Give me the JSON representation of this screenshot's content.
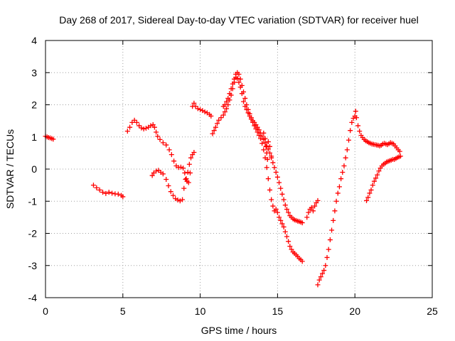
{
  "chart_data": {
    "type": "scatter",
    "title": "Day 268 of 2017, Sidereal Day-to-day VTEC variation (SDTVAR) for receiver huel",
    "xlabel": "GPS time / hours",
    "ylabel": "SDTVAR / TECUs",
    "xlim": [
      0,
      25
    ],
    "ylim": [
      -4,
      4
    ],
    "x_ticks": [
      0,
      5,
      10,
      15,
      20,
      25
    ],
    "y_ticks": [
      -4,
      -3,
      -2,
      -1,
      0,
      1,
      2,
      3,
      4
    ],
    "grid": true,
    "marker": "+",
    "series_color": "#ff0000",
    "series": [
      {
        "points": [
          [
            0.0,
            1.02
          ],
          [
            0.1,
            1.0
          ],
          [
            0.2,
            0.98
          ],
          [
            0.3,
            0.97
          ],
          [
            0.4,
            0.95
          ],
          [
            0.5,
            0.93
          ]
        ]
      },
      {
        "points": [
          [
            3.1,
            -0.5
          ],
          [
            3.3,
            -0.58
          ],
          [
            3.5,
            -0.65
          ],
          [
            3.7,
            -0.72
          ],
          [
            3.9,
            -0.76
          ],
          [
            4.1,
            -0.72
          ],
          [
            4.3,
            -0.75
          ],
          [
            4.5,
            -0.77
          ],
          [
            4.7,
            -0.78
          ],
          [
            4.9,
            -0.82
          ],
          [
            5.0,
            -0.86
          ]
        ]
      },
      {
        "points": [
          [
            5.3,
            1.18
          ],
          [
            5.45,
            1.3
          ],
          [
            5.6,
            1.45
          ],
          [
            5.75,
            1.52
          ],
          [
            5.9,
            1.45
          ],
          [
            6.05,
            1.35
          ],
          [
            6.2,
            1.28
          ],
          [
            6.35,
            1.25
          ],
          [
            6.5,
            1.27
          ],
          [
            6.65,
            1.3
          ],
          [
            6.8,
            1.35
          ],
          [
            6.95,
            1.38
          ],
          [
            7.05,
            1.3
          ],
          [
            7.15,
            1.15
          ],
          [
            7.25,
            1.02
          ],
          [
            7.4,
            0.92
          ],
          [
            7.6,
            0.82
          ],
          [
            7.8,
            0.75
          ],
          [
            8.0,
            0.6
          ],
          [
            8.15,
            0.45
          ],
          [
            8.3,
            0.25
          ],
          [
            8.45,
            0.1
          ],
          [
            8.6,
            0.05
          ],
          [
            8.75,
            0.06
          ],
          [
            8.9,
            0.03
          ],
          [
            9.0,
            -0.12
          ],
          [
            9.1,
            -0.3
          ],
          [
            9.2,
            -0.1
          ],
          [
            9.3,
            0.15
          ],
          [
            9.4,
            0.35
          ],
          [
            9.5,
            0.45
          ],
          [
            9.6,
            0.52
          ]
        ]
      },
      {
        "points": [
          [
            6.9,
            -0.2
          ],
          [
            7.0,
            -0.12
          ],
          [
            7.15,
            -0.06
          ],
          [
            7.3,
            -0.04
          ],
          [
            7.45,
            -0.1
          ],
          [
            7.6,
            -0.15
          ],
          [
            7.8,
            -0.32
          ],
          [
            7.95,
            -0.52
          ],
          [
            8.1,
            -0.7
          ],
          [
            8.25,
            -0.82
          ],
          [
            8.4,
            -0.92
          ],
          [
            8.55,
            -0.96
          ],
          [
            8.7,
            -0.99
          ],
          [
            8.85,
            -0.95
          ],
          [
            8.95,
            -0.6
          ],
          [
            9.05,
            -0.32
          ],
          [
            9.15,
            -0.38
          ],
          [
            9.25,
            -0.42
          ],
          [
            9.35,
            -0.12
          ]
        ]
      },
      {
        "points": [
          [
            9.5,
            1.95
          ],
          [
            9.6,
            2.05
          ],
          [
            9.7,
            1.95
          ],
          [
            9.85,
            1.88
          ],
          [
            10.0,
            1.85
          ],
          [
            10.15,
            1.82
          ],
          [
            10.3,
            1.78
          ],
          [
            10.45,
            1.75
          ],
          [
            10.6,
            1.7
          ],
          [
            10.7,
            1.65
          ]
        ]
      },
      {
        "points": [
          [
            10.8,
            1.1
          ],
          [
            10.9,
            1.2
          ],
          [
            11.0,
            1.3
          ],
          [
            11.1,
            1.42
          ],
          [
            11.2,
            1.52
          ],
          [
            11.35,
            1.6
          ],
          [
            11.5,
            1.68
          ],
          [
            11.6,
            1.78
          ],
          [
            11.7,
            1.88
          ],
          [
            11.8,
            2.0
          ],
          [
            11.9,
            2.15
          ],
          [
            12.0,
            2.3
          ],
          [
            12.1,
            2.5
          ],
          [
            12.2,
            2.7
          ],
          [
            12.3,
            2.85
          ],
          [
            12.4,
            2.82
          ],
          [
            12.5,
            2.7
          ],
          [
            12.6,
            2.55
          ],
          [
            12.7,
            2.35
          ],
          [
            12.8,
            2.1
          ],
          [
            12.9,
            1.95
          ],
          [
            13.0,
            1.85
          ],
          [
            13.1,
            1.75
          ],
          [
            13.2,
            1.65
          ],
          [
            13.3,
            1.55
          ],
          [
            13.4,
            1.45
          ],
          [
            13.5,
            1.35
          ],
          [
            13.6,
            1.25
          ],
          [
            13.7,
            1.15
          ],
          [
            13.8,
            1.05
          ],
          [
            13.9,
            0.95
          ],
          [
            14.0,
            0.8
          ],
          [
            14.1,
            0.6
          ],
          [
            14.2,
            0.35
          ],
          [
            14.3,
            0.05
          ],
          [
            14.4,
            -0.3
          ],
          [
            14.5,
            -0.65
          ],
          [
            14.6,
            -0.95
          ],
          [
            14.7,
            -1.15
          ],
          [
            14.8,
            -1.3
          ],
          [
            14.9,
            -1.25
          ],
          [
            15.0,
            -1.35
          ],
          [
            15.1,
            -1.5
          ],
          [
            15.2,
            -1.6
          ],
          [
            15.3,
            -1.7
          ],
          [
            15.4,
            -1.8
          ],
          [
            15.5,
            -1.95
          ],
          [
            15.6,
            -2.1
          ],
          [
            15.7,
            -2.25
          ],
          [
            15.8,
            -2.4
          ],
          [
            15.9,
            -2.5
          ],
          [
            16.0,
            -2.58
          ],
          [
            16.1,
            -2.62
          ],
          [
            16.2,
            -2.67
          ],
          [
            16.3,
            -2.72
          ],
          [
            16.4,
            -2.78
          ],
          [
            16.5,
            -2.82
          ],
          [
            16.6,
            -2.87
          ]
        ]
      },
      {
        "points": [
          [
            11.5,
            1.95
          ],
          [
            11.6,
            2.0
          ],
          [
            11.7,
            2.1
          ],
          [
            11.8,
            2.2
          ],
          [
            11.9,
            2.35
          ],
          [
            12.0,
            2.5
          ],
          [
            12.1,
            2.65
          ],
          [
            12.2,
            2.8
          ],
          [
            12.3,
            2.95
          ],
          [
            12.4,
            3.0
          ],
          [
            12.5,
            2.95
          ],
          [
            12.6,
            2.8
          ],
          [
            12.7,
            2.6
          ],
          [
            12.8,
            2.4
          ],
          [
            12.9,
            2.2
          ],
          [
            13.0,
            2.0
          ],
          [
            13.1,
            1.85
          ],
          [
            13.2,
            1.72
          ],
          [
            13.3,
            1.6
          ],
          [
            13.4,
            1.5
          ],
          [
            13.5,
            1.45
          ],
          [
            13.6,
            1.38
          ],
          [
            13.7,
            1.3
          ],
          [
            13.8,
            1.22
          ],
          [
            13.9,
            1.12
          ],
          [
            14.0,
            1.02
          ],
          [
            14.1,
            0.92
          ],
          [
            14.2,
            0.82
          ],
          [
            14.3,
            0.72
          ],
          [
            14.4,
            0.62
          ],
          [
            14.5,
            0.5
          ],
          [
            14.6,
            0.35
          ],
          [
            14.7,
            0.2
          ],
          [
            14.8,
            0.05
          ],
          [
            14.9,
            -0.1
          ],
          [
            15.0,
            -0.25
          ],
          [
            15.1,
            -0.42
          ],
          [
            15.2,
            -0.6
          ],
          [
            15.3,
            -0.78
          ],
          [
            15.4,
            -0.95
          ],
          [
            15.5,
            -1.12
          ],
          [
            15.6,
            -1.25
          ],
          [
            15.7,
            -1.35
          ],
          [
            15.8,
            -1.45
          ],
          [
            15.9,
            -1.5
          ],
          [
            16.0,
            -1.55
          ],
          [
            16.1,
            -1.58
          ],
          [
            16.2,
            -1.6
          ],
          [
            16.3,
            -1.62
          ],
          [
            16.4,
            -1.63
          ],
          [
            16.5,
            -1.65
          ],
          [
            16.6,
            -1.67
          ]
        ]
      },
      {
        "points": [
          [
            14.1,
            1.12
          ],
          [
            14.2,
            0.95
          ],
          [
            14.25,
            0.7
          ],
          [
            14.3,
            0.5
          ],
          [
            14.35,
            0.3
          ],
          [
            14.4,
            0.85
          ],
          [
            14.5,
            0.7
          ],
          [
            14.6,
            0.4
          ]
        ]
      },
      {
        "points": [
          [
            16.9,
            -1.5
          ],
          [
            17.0,
            -1.35
          ],
          [
            17.1,
            -1.25
          ],
          [
            17.2,
            -1.2
          ],
          [
            17.3,
            -1.3
          ],
          [
            17.4,
            -1.15
          ],
          [
            17.5,
            -1.05
          ],
          [
            17.6,
            -0.98
          ]
        ]
      },
      {
        "points": [
          [
            17.6,
            -3.6
          ],
          [
            17.7,
            -3.45
          ],
          [
            17.8,
            -3.35
          ],
          [
            17.9,
            -3.25
          ],
          [
            18.0,
            -3.15
          ],
          [
            18.1,
            -3.0
          ],
          [
            18.2,
            -2.75
          ],
          [
            18.3,
            -2.5
          ],
          [
            18.4,
            -2.2
          ],
          [
            18.5,
            -1.9
          ],
          [
            18.6,
            -1.6
          ],
          [
            18.7,
            -1.3
          ],
          [
            18.8,
            -1.0
          ],
          [
            18.9,
            -0.75
          ],
          [
            19.0,
            -0.55
          ],
          [
            19.1,
            -0.3
          ],
          [
            19.2,
            -0.1
          ],
          [
            19.3,
            0.1
          ],
          [
            19.4,
            0.35
          ],
          [
            19.5,
            0.6
          ],
          [
            19.6,
            0.9
          ],
          [
            19.7,
            1.2
          ],
          [
            19.8,
            1.45
          ],
          [
            19.9,
            1.58
          ],
          [
            20.0,
            1.65
          ],
          [
            20.05,
            1.8
          ],
          [
            20.1,
            1.6
          ],
          [
            20.2,
            1.35
          ],
          [
            20.3,
            1.18
          ],
          [
            20.4,
            1.05
          ],
          [
            20.5,
            0.98
          ],
          [
            20.6,
            0.92
          ],
          [
            20.7,
            0.88
          ],
          [
            20.8,
            0.85
          ],
          [
            20.9,
            0.82
          ],
          [
            21.0,
            0.8
          ],
          [
            21.1,
            0.78
          ],
          [
            21.2,
            0.77
          ],
          [
            21.3,
            0.76
          ],
          [
            21.4,
            0.75
          ],
          [
            21.5,
            0.74
          ],
          [
            21.6,
            0.72
          ],
          [
            21.7,
            0.74
          ],
          [
            21.8,
            0.78
          ],
          [
            21.9,
            0.8
          ],
          [
            22.0,
            0.78
          ],
          [
            22.1,
            0.76
          ],
          [
            22.2,
            0.79
          ],
          [
            22.3,
            0.82
          ],
          [
            22.4,
            0.8
          ],
          [
            22.5,
            0.78
          ],
          [
            22.6,
            0.72
          ],
          [
            22.7,
            0.66
          ],
          [
            22.8,
            0.6
          ],
          [
            22.9,
            0.55
          ]
        ]
      },
      {
        "points": [
          [
            20.75,
            -0.98
          ],
          [
            20.85,
            -0.88
          ],
          [
            20.95,
            -0.75
          ],
          [
            21.05,
            -0.65
          ],
          [
            21.15,
            -0.5
          ],
          [
            21.25,
            -0.38
          ],
          [
            21.35,
            -0.28
          ],
          [
            21.45,
            -0.18
          ],
          [
            21.55,
            -0.06
          ],
          [
            21.65,
            0.03
          ],
          [
            21.75,
            0.1
          ],
          [
            21.85,
            0.15
          ],
          [
            21.95,
            0.18
          ],
          [
            22.05,
            0.22
          ],
          [
            22.15,
            0.24
          ],
          [
            22.25,
            0.26
          ],
          [
            22.35,
            0.28
          ],
          [
            22.45,
            0.3
          ],
          [
            22.55,
            0.3
          ],
          [
            22.65,
            0.33
          ],
          [
            22.75,
            0.36
          ],
          [
            22.85,
            0.38
          ],
          [
            22.95,
            0.4
          ]
        ]
      }
    ]
  }
}
